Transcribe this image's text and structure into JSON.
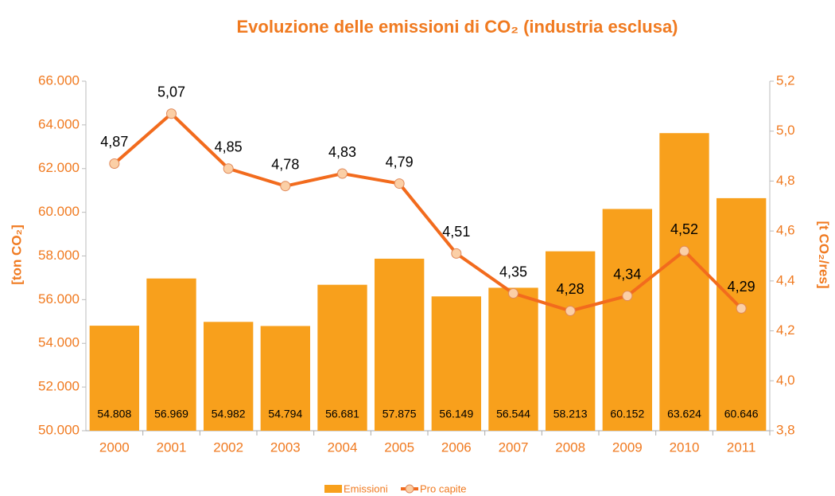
{
  "chart_data": {
    "type": "bar",
    "title": "Evoluzione delle emissioni di CO₂ (industria esclusa)",
    "ylabel": "[ton CO₂]",
    "y2label": "[t CO₂/res]",
    "categories": [
      "2000",
      "2001",
      "2002",
      "2003",
      "2004",
      "2005",
      "2006",
      "2007",
      "2008",
      "2009",
      "2010",
      "2011"
    ],
    "series": [
      {
        "name": "Emissioni",
        "type": "bar",
        "color": "#f8a01c",
        "values": [
          54808,
          56969,
          54982,
          54794,
          56681,
          57875,
          56149,
          56544,
          58213,
          60152,
          63624,
          60646
        ],
        "value_labels": [
          "54.808",
          "56.969",
          "54.982",
          "54.794",
          "56.681",
          "57.875",
          "56.149",
          "56.544",
          "58.213",
          "60.152",
          "63.624",
          "60.646"
        ]
      },
      {
        "name": "Pro capite",
        "type": "line",
        "axis": "y2",
        "color": "#f26b1d",
        "marker_color": "#fbcfa6",
        "values": [
          4.87,
          5.07,
          4.85,
          4.78,
          4.83,
          4.79,
          4.51,
          4.35,
          4.28,
          4.34,
          4.52,
          4.29
        ],
        "value_labels": [
          "4,87",
          "5,07",
          "4,85",
          "4,78",
          "4,83",
          "4,79",
          "4,51",
          "4,35",
          "4,28",
          "4,34",
          "4,52",
          "4,29"
        ]
      }
    ],
    "ylim": [
      50000,
      66000
    ],
    "yticks": [
      {
        "value": 50000,
        "label": "50.000"
      },
      {
        "value": 52000,
        "label": "52.000"
      },
      {
        "value": 54000,
        "label": "54.000"
      },
      {
        "value": 56000,
        "label": "56.000"
      },
      {
        "value": 58000,
        "label": "58.000"
      },
      {
        "value": 60000,
        "label": "60.000"
      },
      {
        "value": 62000,
        "label": "62.000"
      },
      {
        "value": 64000,
        "label": "64.000"
      },
      {
        "value": 66000,
        "label": "66.000"
      }
    ],
    "y2lim": [
      3.8,
      5.2
    ],
    "y2ticks": [
      {
        "value": 3.8,
        "label": "3,8"
      },
      {
        "value": 4.0,
        "label": "4,0"
      },
      {
        "value": 4.2,
        "label": "4,2"
      },
      {
        "value": 4.4,
        "label": "4,4"
      },
      {
        "value": 4.6,
        "label": "4,6"
      },
      {
        "value": 4.8,
        "label": "4,8"
      },
      {
        "value": 5.0,
        "label": "5,0"
      },
      {
        "value": 5.2,
        "label": "5,2"
      }
    ],
    "grid": false,
    "legend": "bottom"
  }
}
